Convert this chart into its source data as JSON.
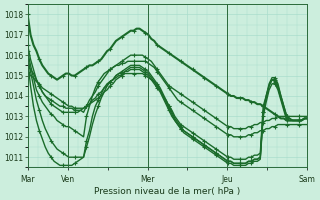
{
  "title": "",
  "xlabel": "Pression niveau de la mer( hPa )",
  "ylim": [
    1010.5,
    1018.5
  ],
  "yticks": [
    1011,
    1012,
    1013,
    1014,
    1015,
    1016,
    1017,
    1018
  ],
  "xtick_labels": [
    "Mar",
    "Ven",
    "",
    "Mer",
    "",
    "Jeu",
    "",
    "Sam"
  ],
  "xtick_positions": [
    0,
    1,
    2,
    3,
    4,
    5,
    6,
    7
  ],
  "bg_color": "#cceedd",
  "grid_color": "#aaddcc",
  "line_color": "#1a6b2a",
  "line_color2": "#2d8c3c",
  "n_points": 96,
  "series": [
    [
      1018.0,
      1017.0,
      1016.5,
      1016.2,
      1015.8,
      1015.5,
      1015.3,
      1015.1,
      1015.0,
      1014.9,
      1014.8,
      1014.9,
      1015.0,
      1015.1,
      1015.1,
      1015.0,
      1015.0,
      1015.1,
      1015.2,
      1015.3,
      1015.4,
      1015.5,
      1015.5,
      1015.6,
      1015.7,
      1015.8,
      1016.0,
      1016.2,
      1016.3,
      1016.5,
      1016.7,
      1016.8,
      1016.9,
      1017.0,
      1017.1,
      1017.2,
      1017.2,
      1017.3,
      1017.3,
      1017.2,
      1017.1,
      1017.0,
      1016.8,
      1016.7,
      1016.5,
      1016.4,
      1016.3,
      1016.2,
      1016.1,
      1016.0,
      1015.9,
      1015.8,
      1015.7,
      1015.6,
      1015.5,
      1015.4,
      1015.3,
      1015.2,
      1015.1,
      1015.0,
      1014.9,
      1014.8,
      1014.7,
      1014.6,
      1014.5,
      1014.4,
      1014.3,
      1014.2,
      1014.1,
      1014.0,
      1014.0,
      1013.9,
      1013.9,
      1013.9,
      1013.8,
      1013.8,
      1013.7,
      1013.7,
      1013.6,
      1013.6,
      1013.5,
      1013.4,
      1013.3,
      1013.2,
      1013.1,
      1013.0,
      1012.9,
      1012.9,
      1012.8,
      1012.8,
      1012.8,
      1012.8,
      1012.8,
      1012.8,
      1012.9,
      1012.9
    ],
    [
      1016.5,
      1015.8,
      1015.3,
      1014.8,
      1014.5,
      1014.2,
      1014.0,
      1013.9,
      1013.8,
      1013.7,
      1013.6,
      1013.5,
      1013.5,
      1013.4,
      1013.4,
      1013.4,
      1013.3,
      1013.3,
      1013.3,
      1013.2,
      1013.5,
      1013.8,
      1014.0,
      1014.2,
      1014.5,
      1014.7,
      1014.9,
      1015.1,
      1015.3,
      1015.4,
      1015.5,
      1015.6,
      1015.7,
      1015.8,
      1015.9,
      1016.0,
      1016.0,
      1016.0,
      1016.0,
      1016.0,
      1015.9,
      1015.8,
      1015.7,
      1015.5,
      1015.3,
      1015.1,
      1014.9,
      1014.7,
      1014.5,
      1014.4,
      1014.3,
      1014.2,
      1014.1,
      1014.0,
      1013.9,
      1013.8,
      1013.7,
      1013.6,
      1013.5,
      1013.4,
      1013.3,
      1013.2,
      1013.1,
      1013.0,
      1012.9,
      1012.8,
      1012.7,
      1012.6,
      1012.5,
      1012.5,
      1012.4,
      1012.4,
      1012.4,
      1012.4,
      1012.4,
      1012.5,
      1012.5,
      1012.6,
      1012.6,
      1012.7,
      1012.7,
      1012.8,
      1012.8,
      1012.9,
      1012.9,
      1013.0,
      1013.0,
      1013.0,
      1013.0,
      1013.0,
      1013.0,
      1013.0,
      1013.0,
      1013.0,
      1013.0,
      1013.0
    ],
    [
      1016.2,
      1015.5,
      1014.9,
      1014.3,
      1014.0,
      1013.7,
      1013.5,
      1013.3,
      1013.1,
      1013.0,
      1012.8,
      1012.7,
      1012.6,
      1012.5,
      1012.5,
      1012.4,
      1012.3,
      1012.2,
      1012.1,
      1012.0,
      1013.0,
      1013.5,
      1014.0,
      1014.4,
      1014.7,
      1014.9,
      1015.1,
      1015.2,
      1015.3,
      1015.4,
      1015.5,
      1015.5,
      1015.6,
      1015.6,
      1015.7,
      1015.7,
      1015.7,
      1015.7,
      1015.7,
      1015.7,
      1015.7,
      1015.6,
      1015.5,
      1015.4,
      1015.2,
      1015.0,
      1014.8,
      1014.6,
      1014.4,
      1014.2,
      1014.0,
      1013.8,
      1013.7,
      1013.6,
      1013.5,
      1013.4,
      1013.3,
      1013.2,
      1013.1,
      1013.0,
      1012.9,
      1012.8,
      1012.7,
      1012.6,
      1012.5,
      1012.4,
      1012.3,
      1012.2,
      1012.1,
      1012.1,
      1012.0,
      1012.0,
      1012.0,
      1012.0,
      1012.0,
      1012.1,
      1012.1,
      1012.2,
      1012.2,
      1012.3,
      1012.3,
      1012.4,
      1012.4,
      1012.5,
      1012.5,
      1012.6,
      1012.6,
      1012.6,
      1012.6,
      1012.6,
      1012.6,
      1012.6,
      1012.6,
      1012.6,
      1012.6,
      1012.6
    ],
    [
      1016.0,
      1015.2,
      1014.5,
      1013.8,
      1013.3,
      1012.8,
      1012.4,
      1012.1,
      1011.8,
      1011.6,
      1011.4,
      1011.3,
      1011.2,
      1011.1,
      1011.0,
      1011.0,
      1011.0,
      1011.0,
      1011.0,
      1011.0,
      1011.8,
      1012.3,
      1013.0,
      1013.5,
      1013.8,
      1014.1,
      1014.4,
      1014.6,
      1014.7,
      1014.8,
      1014.9,
      1015.0,
      1015.0,
      1015.1,
      1015.1,
      1015.1,
      1015.1,
      1015.1,
      1015.1,
      1015.1,
      1015.0,
      1014.9,
      1014.8,
      1014.7,
      1014.5,
      1014.3,
      1014.0,
      1013.8,
      1013.5,
      1013.3,
      1013.0,
      1012.8,
      1012.6,
      1012.5,
      1012.4,
      1012.3,
      1012.2,
      1012.1,
      1012.0,
      1011.9,
      1011.8,
      1011.7,
      1011.6,
      1011.5,
      1011.4,
      1011.3,
      1011.2,
      1011.1,
      1011.0,
      1011.0,
      1010.9,
      1010.9,
      1010.9,
      1010.9,
      1010.9,
      1011.0,
      1011.0,
      1011.1,
      1011.1,
      1011.2,
      1013.5,
      1014.0,
      1014.5,
      1014.8,
      1014.8,
      1014.5,
      1014.0,
      1013.5,
      1013.0,
      1012.9,
      1012.8,
      1012.8,
      1012.8,
      1012.8,
      1012.9,
      1012.9
    ],
    [
      1015.8,
      1014.5,
      1013.5,
      1012.8,
      1012.3,
      1011.9,
      1011.5,
      1011.2,
      1011.0,
      1010.8,
      1010.7,
      1010.6,
      1010.6,
      1010.6,
      1010.6,
      1010.6,
      1010.7,
      1010.8,
      1010.9,
      1011.0,
      1011.5,
      1012.0,
      1012.6,
      1013.1,
      1013.5,
      1013.9,
      1014.2,
      1014.5,
      1014.7,
      1014.8,
      1015.0,
      1015.1,
      1015.1,
      1015.2,
      1015.2,
      1015.3,
      1015.3,
      1015.3,
      1015.3,
      1015.2,
      1015.1,
      1015.0,
      1014.8,
      1014.6,
      1014.4,
      1014.2,
      1013.9,
      1013.6,
      1013.3,
      1013.0,
      1012.8,
      1012.6,
      1012.4,
      1012.3,
      1012.2,
      1012.1,
      1012.0,
      1011.9,
      1011.8,
      1011.7,
      1011.6,
      1011.5,
      1011.4,
      1011.3,
      1011.2,
      1011.1,
      1011.0,
      1010.9,
      1010.8,
      1010.8,
      1010.7,
      1010.7,
      1010.7,
      1010.7,
      1010.7,
      1010.8,
      1010.8,
      1010.9,
      1010.9,
      1011.0,
      1013.2,
      1014.0,
      1014.6,
      1014.9,
      1014.9,
      1014.6,
      1014.0,
      1013.5,
      1013.0,
      1012.9,
      1012.8,
      1012.8,
      1012.8,
      1012.8,
      1012.9,
      1012.9
    ],
    [
      1015.5,
      1015.3,
      1015.1,
      1014.8,
      1014.5,
      1014.2,
      1014.0,
      1013.8,
      1013.6,
      1013.5,
      1013.4,
      1013.3,
      1013.2,
      1013.2,
      1013.2,
      1013.2,
      1013.2,
      1013.2,
      1013.3,
      1013.4,
      1013.5,
      1013.6,
      1013.8,
      1013.9,
      1014.1,
      1014.2,
      1014.4,
      1014.5,
      1014.7,
      1014.8,
      1015.0,
      1015.1,
      1015.2,
      1015.3,
      1015.4,
      1015.5,
      1015.5,
      1015.5,
      1015.5,
      1015.4,
      1015.3,
      1015.2,
      1015.0,
      1014.8,
      1014.6,
      1014.4,
      1014.1,
      1013.8,
      1013.5,
      1013.2,
      1012.9,
      1012.7,
      1012.5,
      1012.3,
      1012.2,
      1012.1,
      1012.0,
      1011.9,
      1011.8,
      1011.7,
      1011.6,
      1011.5,
      1011.4,
      1011.3,
      1011.2,
      1011.1,
      1011.0,
      1010.9,
      1010.8,
      1010.8,
      1010.7,
      1010.7,
      1010.7,
      1010.7,
      1010.7,
      1010.8,
      1010.8,
      1010.9,
      1010.9,
      1011.0,
      1013.2,
      1013.9,
      1014.5,
      1014.8,
      1014.7,
      1014.4,
      1013.9,
      1013.4,
      1012.9,
      1012.8,
      1012.8,
      1012.8,
      1012.8,
      1012.8,
      1012.9,
      1012.9
    ],
    [
      1015.2,
      1015.0,
      1014.9,
      1014.7,
      1014.6,
      1014.4,
      1014.3,
      1014.2,
      1014.1,
      1014.0,
      1013.9,
      1013.8,
      1013.7,
      1013.6,
      1013.5,
      1013.5,
      1013.4,
      1013.4,
      1013.4,
      1013.4,
      1013.5,
      1013.6,
      1013.7,
      1013.8,
      1013.9,
      1014.0,
      1014.2,
      1014.3,
      1014.5,
      1014.6,
      1014.8,
      1014.9,
      1015.0,
      1015.2,
      1015.3,
      1015.4,
      1015.4,
      1015.4,
      1015.4,
      1015.3,
      1015.2,
      1015.1,
      1014.9,
      1014.7,
      1014.5,
      1014.3,
      1014.0,
      1013.7,
      1013.4,
      1013.1,
      1012.8,
      1012.6,
      1012.4,
      1012.2,
      1012.1,
      1012.0,
      1011.9,
      1011.8,
      1011.7,
      1011.6,
      1011.5,
      1011.4,
      1011.3,
      1011.2,
      1011.1,
      1011.0,
      1010.9,
      1010.8,
      1010.7,
      1010.7,
      1010.6,
      1010.6,
      1010.6,
      1010.6,
      1010.6,
      1010.7,
      1010.7,
      1010.8,
      1010.8,
      1010.9,
      1013.0,
      1013.7,
      1014.3,
      1014.6,
      1014.6,
      1014.3,
      1013.8,
      1013.3,
      1012.8,
      1012.8,
      1012.8,
      1012.8,
      1012.8,
      1012.8,
      1012.9,
      1012.9
    ]
  ]
}
